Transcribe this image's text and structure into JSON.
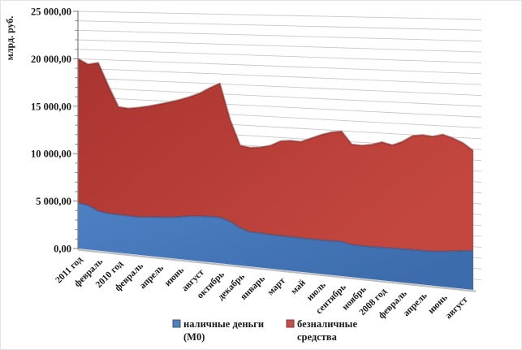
{
  "figure": {
    "kind": "3d-stacked-area-chart",
    "background": "#ffffff"
  },
  "chart_data": {
    "type": "area",
    "stacked": true,
    "title": "",
    "ylabel": "млрд. руб.",
    "ylim": [
      0,
      25000
    ],
    "y_major_step": 5000,
    "y_minor_step": 1000,
    "grid": true,
    "y_tick_labels": [
      "0,00",
      "5 000,00",
      "10 000,00",
      "15 000,00",
      "20 000,00",
      "25 000,00"
    ],
    "x_tick_labels": [
      "2011 год",
      "февраль",
      "2010 год",
      "февраль",
      "апрель",
      "июнь",
      "август",
      "октябрь",
      "декабрь",
      "январь",
      "март",
      "май",
      "июль",
      "сентябрь",
      "ноябрь",
      "2008 год",
      "февраль",
      "апрель",
      "июнь",
      "август"
    ],
    "x_label_every_nth_point": 2,
    "legend_position": "bottom",
    "series": [
      {
        "name": "наличные деньги (М0)",
        "legend_lines": [
          "наличные деньги",
          "(М0)"
        ],
        "color": "#4f81bd",
        "fill_gradient": [
          "#4d80c4",
          "#3c6cab"
        ],
        "edge_color": "#2a4d7d",
        "values": [
          4800,
          4650,
          4150,
          3980,
          3950,
          3920,
          3900,
          4000,
          4080,
          4160,
          4300,
          4450,
          4550,
          4600,
          4620,
          4300,
          3740,
          3430,
          3420,
          3350,
          3340,
          3320,
          3310,
          3300,
          3290,
          3300,
          3320,
          3110,
          3100,
          3100,
          3120,
          3150,
          3170,
          3180,
          3190,
          3200,
          3300,
          3400,
          3520,
          3630
        ]
      },
      {
        "name": "безналичные средства",
        "legend_lines": [
          "безналичные",
          "средства"
        ],
        "color": "#c0504d",
        "fill_gradient": [
          "#aa3430",
          "#c3473f"
        ],
        "edge_color": "#7c221e",
        "values": [
          15200,
          14800,
          15500,
          13320,
          11200,
          11130,
          11300,
          11400,
          11570,
          11740,
          11900,
          12100,
          12400,
          12950,
          13430,
          10200,
          8210,
          8370,
          8480,
          8800,
          9310,
          9430,
          9390,
          9800,
          10210,
          10500,
          10630,
          9640,
          9600,
          9750,
          10030,
          9750,
          10130,
          10720,
          10860,
          10750,
          10900,
          10500,
          9980,
          9220
        ]
      }
    ],
    "stacked_totals_top_edge_first_last": [
      20000,
      12850
    ]
  },
  "style_colors": {
    "gridline": "#c9c9c9",
    "axis": "#808080",
    "floor_edge": "#bfbfbf",
    "text": "#1a1a1a"
  }
}
